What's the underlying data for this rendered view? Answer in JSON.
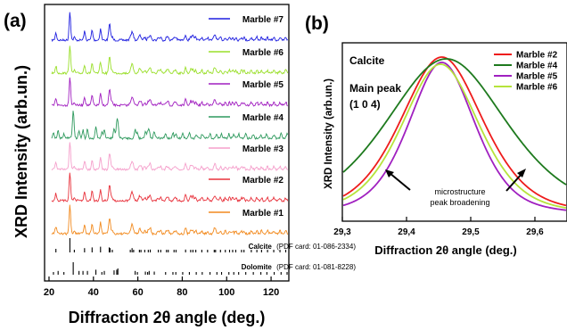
{
  "colors": {
    "marble_7": "#1f1fe0",
    "marble_6": "#9adf2a",
    "marble_5": "#a11ec0",
    "marble_4": "#2f9a5e",
    "marble_3": "#f59fcb",
    "marble_2": "#e8323c",
    "marble_1": "#f28a1e",
    "b_marble_2": "#ee1c1c",
    "b_marble_4": "#1e7a1e",
    "b_marble_5": "#a020c0",
    "b_marble_6": "#b6e43c"
  },
  "chart_data": [
    {
      "panel_label": "(a)",
      "type": "line",
      "xlabel": "Diffraction 2θ angle (deg.)",
      "ylabel": "XRD Intensity (arb.un.)",
      "xlim": [
        18,
        128
      ],
      "xticks": [
        20,
        40,
        60,
        80,
        100,
        120
      ],
      "series_order_top_to_bottom": [
        "Marble #7",
        "Marble #6",
        "Marble #5",
        "Marble #4",
        "Marble #3",
        "Marble #2",
        "Marble #1"
      ],
      "series": [
        {
          "name": "Marble #7",
          "pattern": "calcite"
        },
        {
          "name": "Marble #6",
          "pattern": "calcite"
        },
        {
          "name": "Marble #5",
          "pattern": "calcite"
        },
        {
          "name": "Marble #4",
          "pattern": "dolomite"
        },
        {
          "name": "Marble #3",
          "pattern": "calcite"
        },
        {
          "name": "Marble #2",
          "pattern": "calcite"
        },
        {
          "name": "Marble #1",
          "pattern": "calcite"
        }
      ],
      "reference_patterns": [
        {
          "name": "Calcite",
          "card": "(PDF card: 01-086-2334)",
          "peaks": [
            23.1,
            29.4,
            31.4,
            36.0,
            39.4,
            43.2,
            47.1,
            47.5,
            48.5,
            56.6,
            57.4,
            58.1,
            60.7,
            61.4,
            63.1,
            64.7,
            65.6,
            69.2,
            70.3,
            72.9,
            73.7,
            76.3,
            77.2,
            81.5,
            83.8,
            84.8,
            86.1,
            88.8,
            91.4,
            94.4,
            95.0,
            97.2,
            99.4,
            101.3,
            102.7,
            104.1,
            106.7,
            107.8,
            111.1,
            113.6,
            115.7,
            118.4,
            121.2,
            124.0,
            126.6
          ],
          "heights": [
            0.25,
            1.0,
            0.1,
            0.3,
            0.35,
            0.4,
            0.35,
            0.3,
            0.1,
            0.1,
            0.3,
            0.1,
            0.15,
            0.1,
            0.1,
            0.12,
            0.2,
            0.1,
            0.1,
            0.1,
            0.1,
            0.1,
            0.1,
            0.2,
            0.15,
            0.15,
            0.1,
            0.1,
            0.1,
            0.15,
            0.12,
            0.1,
            0.1,
            0.1,
            0.1,
            0.1,
            0.1,
            0.1,
            0.1,
            0.12,
            0.1,
            0.1,
            0.1,
            0.1,
            0.1
          ]
        },
        {
          "name": "Dolomite",
          "card": "(PDF card: 01-081-8228)",
          "peaks": [
            22.0,
            24.1,
            26.7,
            30.9,
            33.5,
            35.3,
            37.3,
            41.1,
            43.8,
            44.9,
            49.3,
            50.5,
            51.0,
            58.8,
            59.8,
            63.4,
            64.4,
            65.1,
            67.4,
            72.5,
            75.8,
            77.1,
            80.2,
            83.2,
            86.3,
            89.0,
            92.5,
            95.6,
            97.7,
            101.0,
            103.2,
            105.4,
            108.6,
            112.0,
            115.4,
            118.1,
            121.4,
            124.5,
            127.2
          ],
          "heights": [
            0.2,
            0.3,
            0.15,
            1.0,
            0.3,
            0.3,
            0.3,
            0.4,
            0.2,
            0.3,
            0.35,
            0.4,
            0.5,
            0.3,
            0.2,
            0.25,
            0.2,
            0.3,
            0.25,
            0.15,
            0.2,
            0.15,
            0.2,
            0.2,
            0.15,
            0.15,
            0.15,
            0.15,
            0.15,
            0.15,
            0.15,
            0.15,
            0.15,
            0.15,
            0.15,
            0.15,
            0.15,
            0.15,
            0.15
          ]
        }
      ]
    },
    {
      "panel_label": "(b)",
      "type": "line",
      "xlabel": "Diffraction 2θ angle (deg.)",
      "ylabel": "XRD Intensity (arb.un.)",
      "xlim": [
        29.3,
        29.65
      ],
      "xticks": [
        "29,3",
        "29,4",
        "29,5",
        "29,6"
      ],
      "xtick_values": [
        29.3,
        29.4,
        29.5,
        29.6
      ],
      "annotation_phase": "Calcite",
      "annotation_peak": "Main peak",
      "annotation_hkl": "(1 0 4)",
      "annotation_arrows": [
        "microstructure",
        "peak broadening"
      ],
      "legend_position": "top-right",
      "series": [
        {
          "name": "Marble #2",
          "center": 29.455,
          "fwhm": 0.155
        },
        {
          "name": "Marble #4",
          "center": 29.462,
          "fwhm": 0.225
        },
        {
          "name": "Marble #5",
          "center": 29.455,
          "fwhm": 0.125
        },
        {
          "name": "Marble #6",
          "center": 29.453,
          "fwhm": 0.145
        }
      ]
    }
  ]
}
